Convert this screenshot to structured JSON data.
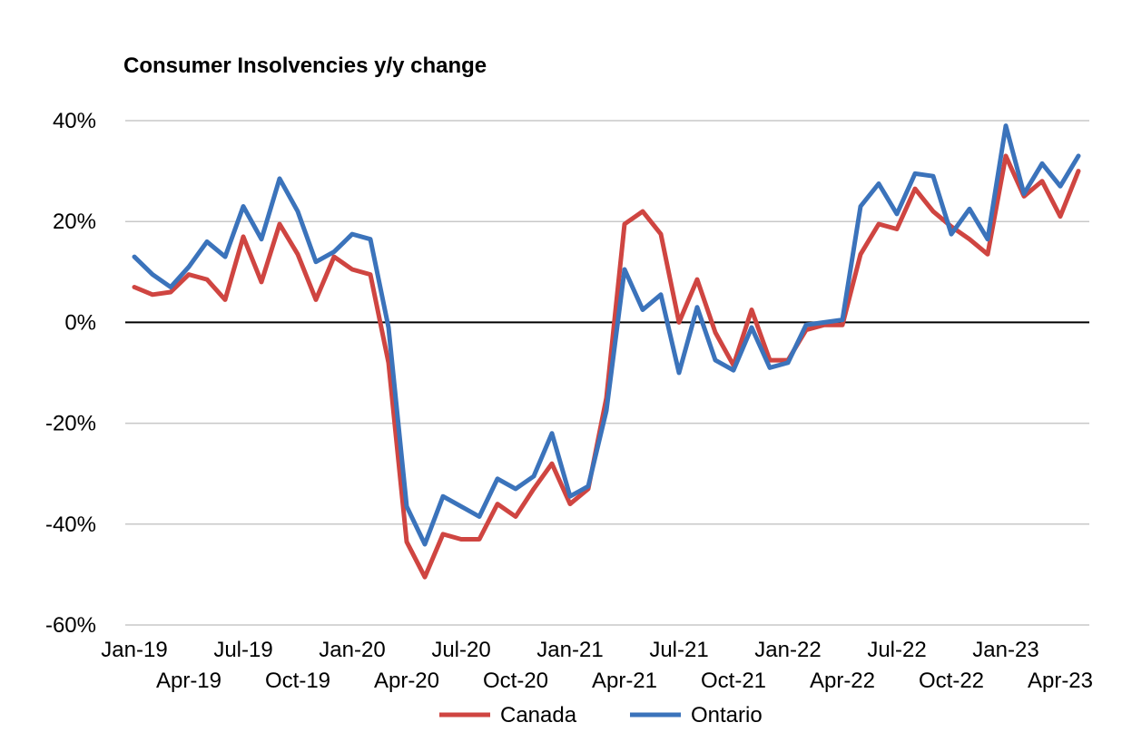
{
  "chart_data": {
    "type": "line",
    "title": "Consumer Insolvencies y/y change",
    "xlabel": "",
    "ylabel": "",
    "ylim": [
      -60,
      40
    ],
    "yticks": [
      40,
      20,
      0,
      -20,
      -40,
      -60
    ],
    "ytick_labels": [
      "40%",
      "20%",
      "0%",
      "-20%",
      "-40%",
      "-60%"
    ],
    "x_start": "Jan-19",
    "x_ticks_upper": [
      "Jan-19",
      "Jul-19",
      "Jan-20",
      "Jul-20",
      "Jan-21",
      "Jul-21",
      "Jan-22",
      "Jul-22",
      "Jan-23"
    ],
    "x_ticks_lower": [
      "Apr-19",
      "Oct-19",
      "Apr-20",
      "Oct-20",
      "Apr-21",
      "Oct-21",
      "Apr-22",
      "Oct-22",
      "Apr-23"
    ],
    "grid": true,
    "legend_position": "bottom",
    "series": [
      {
        "name": "Canada",
        "color": "#cf4541",
        "values": [
          7,
          5.5,
          6,
          9.5,
          8.5,
          4.5,
          17,
          8,
          19.5,
          13.5,
          4.5,
          13,
          10.5,
          9.5,
          -8,
          -43.5,
          -50.5,
          -42,
          -43,
          -43,
          -36,
          -38.5,
          -33,
          -28,
          -36,
          -33,
          -15,
          19.5,
          22,
          17.5,
          0,
          8.5,
          -2,
          -8.5,
          2.5,
          -7.5,
          -7.5,
          -1.5,
          -0.5,
          -0.5,
          13.5,
          19.5,
          18.5,
          26.5,
          22,
          19,
          16.5,
          13.5,
          33,
          25,
          28,
          21,
          30
        ]
      },
      {
        "name": "Ontario",
        "color": "#3b73bb",
        "values": [
          13,
          9.5,
          7,
          11,
          16,
          13,
          23,
          16.5,
          28.5,
          22,
          12,
          14,
          17.5,
          16.5,
          -1,
          -36.5,
          -44,
          -34.5,
          -36.5,
          -38.5,
          -31,
          -33,
          -30.5,
          -22,
          -34.5,
          -32.5,
          -17.5,
          10.5,
          2.5,
          5.5,
          -10,
          3,
          -7.5,
          -9.5,
          -1,
          -9,
          -8,
          -0.5,
          0,
          0.5,
          23,
          27.5,
          21.5,
          29.5,
          29,
          17.5,
          22.5,
          16.5,
          39,
          25.5,
          31.5,
          27,
          33
        ]
      }
    ]
  }
}
